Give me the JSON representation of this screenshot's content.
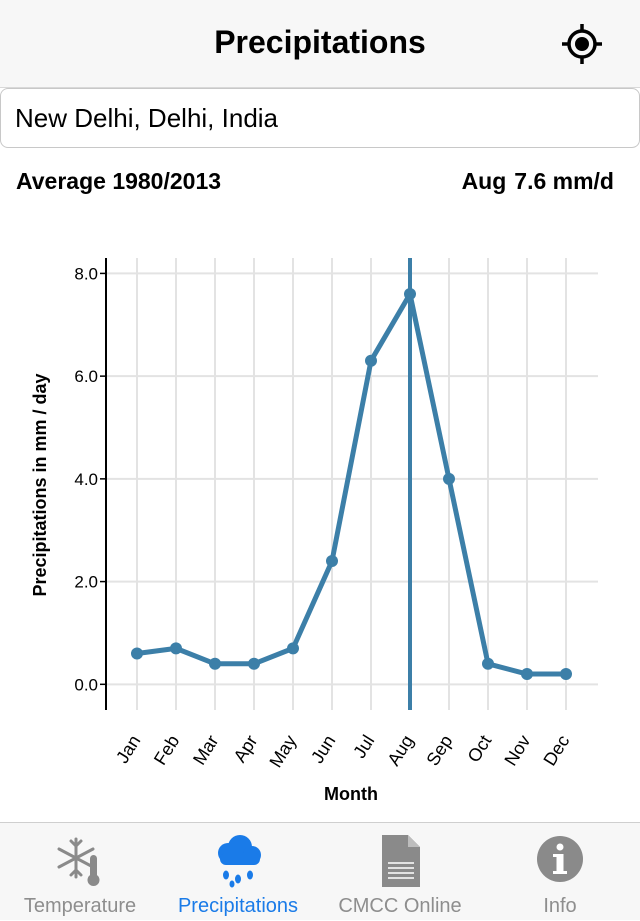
{
  "navbar": {
    "title": "Precipitations",
    "locate_icon": "crosshair-locate-icon"
  },
  "search": {
    "value": "New Delhi, Delhi, India"
  },
  "stats": {
    "period": "Average 1980/2013",
    "selected_month": "Aug",
    "selected_value": "7.6 mm/d"
  },
  "colors": {
    "series": "#3c7fa8",
    "grid": "#e3e3e3",
    "tab_active": "#1a7be8",
    "tab_inactive": "#8e8e8e"
  },
  "chart_data": {
    "type": "line",
    "categories": [
      "Jan",
      "Feb",
      "Mar",
      "Apr",
      "May",
      "Jun",
      "Jul",
      "Aug",
      "Sep",
      "Oct",
      "Nov",
      "Dec"
    ],
    "values": [
      0.6,
      0.7,
      0.4,
      0.4,
      0.7,
      2.4,
      6.3,
      7.6,
      4.0,
      0.4,
      0.2,
      0.2
    ],
    "yticks": [
      "0.0",
      "2.0",
      "4.0",
      "6.0",
      "8.0"
    ],
    "ylim": [
      -0.5,
      8.3
    ],
    "ylabel": "Precipitations in mm / day",
    "xlabel": "Month",
    "highlight_category": "Aug",
    "grid": true
  },
  "tabs": [
    {
      "label": "Temperature",
      "icon": "snowflake-thermometer-icon",
      "active": false
    },
    {
      "label": "Precipitations",
      "icon": "rain-cloud-icon",
      "active": true
    },
    {
      "label": "CMCC Online",
      "icon": "document-icon",
      "active": false
    },
    {
      "label": "Info",
      "icon": "info-icon",
      "active": false
    }
  ]
}
